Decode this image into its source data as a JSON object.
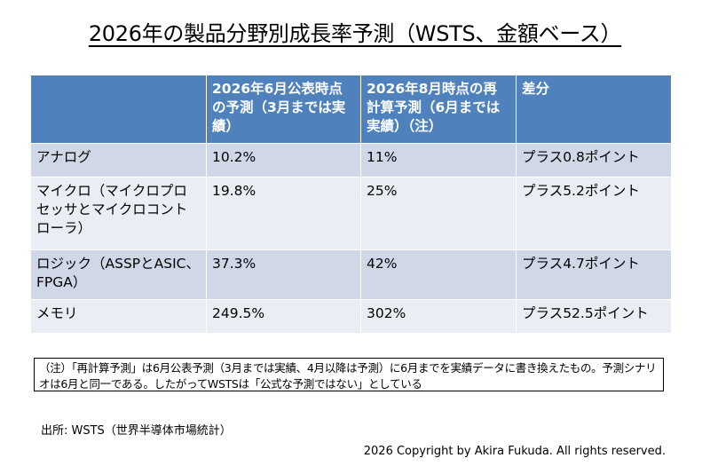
{
  "title": "2026年の製品分野別成長率予測（WSTS、金額ベース）",
  "table": {
    "headers": [
      "",
      "2026年6月公表時点の予測（3月までは実績）",
      "2026年8月時点の再計算予測（6月までは実績）（注）",
      "差分"
    ],
    "rows": [
      {
        "category": "アナログ",
        "june": "10.2%",
        "august": "11%",
        "diff": "プラス0.8ポイント"
      },
      {
        "category": "マイクロ（マイクロプロセッサとマイクロコントローラ）",
        "june": "19.8%",
        "august": "25%",
        "diff": "プラス5.2ポイント"
      },
      {
        "category": "ロジック（ASSPとASIC、FPGA）",
        "june": "37.3%",
        "august": "42%",
        "diff": "プラス4.7ポイント"
      },
      {
        "category": "メモリ",
        "june": "249.5%",
        "august": "302%",
        "diff": "プラス52.5ポイント"
      }
    ]
  },
  "note": "（注）「再計算予測」は6月公表予測（3月までは実績、4月以降は予測）に6月までを実績データに書き換えたもの。予測シナリオは6月と同一である。したがってWSTSは「公式な予測ではない」としている",
  "source": "出所: WSTS（世界半導体市場統計）",
  "copyright": "2026 Copyright by Akira Fukuda. All rights reserved."
}
